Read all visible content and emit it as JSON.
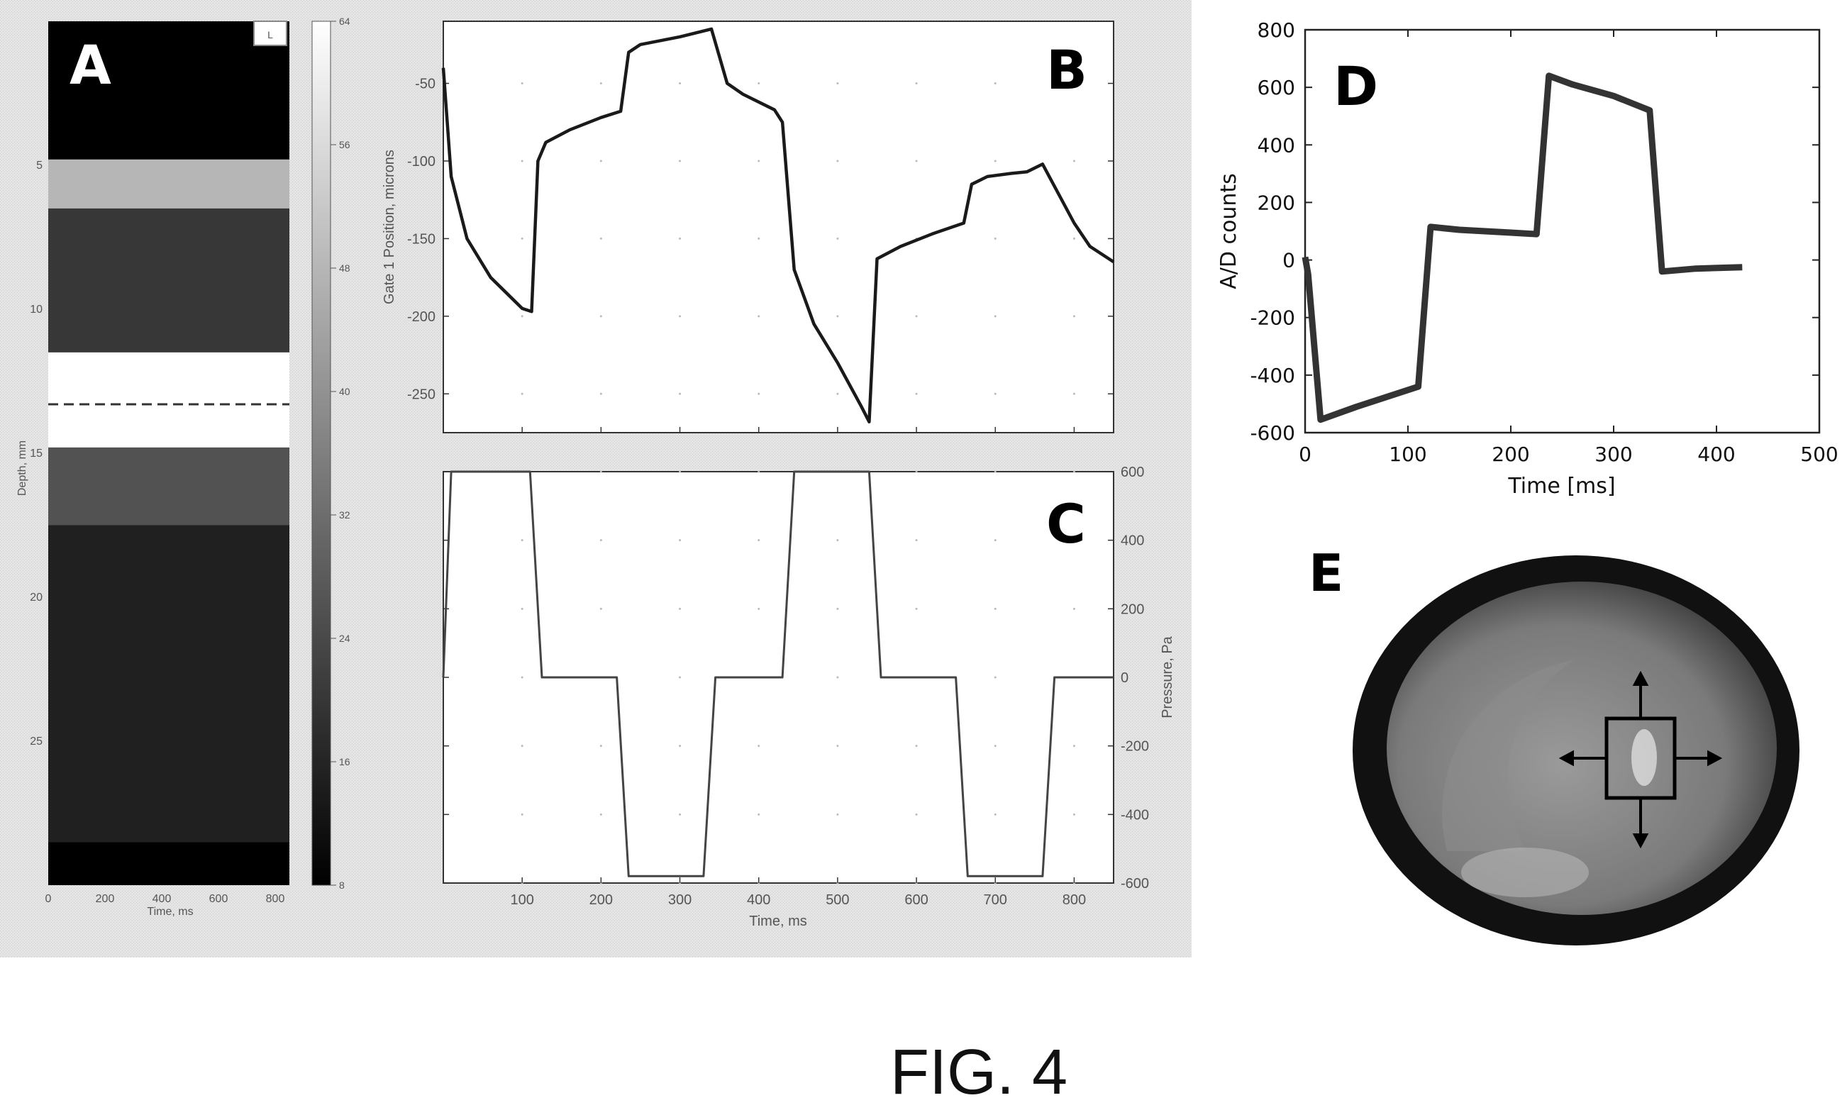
{
  "figure_label": "FIG. 4",
  "colors": {
    "trace": "#1a1a1a",
    "panel_bg": "#e6e6e6",
    "axis": "#222222"
  },
  "chart_data": [
    {
      "panel": "A",
      "type": "heatmap",
      "xlabel": "Time, ms",
      "ylabel": "Depth, mm",
      "xticks": [
        0,
        200,
        400,
        600,
        800
      ],
      "yticks": [
        5,
        10,
        15,
        20,
        25
      ],
      "xlim": [
        0,
        850
      ],
      "ylim": [
        0,
        30
      ],
      "colorbar_ticks": [
        8,
        16,
        24,
        32,
        40,
        48,
        56,
        64
      ],
      "colorbar_range": [
        8,
        64
      ],
      "dashed_line_depth": 13.3,
      "bands": [
        {
          "from": 0,
          "to": 4.8,
          "value": 8
        },
        {
          "from": 4.8,
          "to": 6.5,
          "value": 48
        },
        {
          "from": 6.5,
          "to": 11.5,
          "value": 20
        },
        {
          "from": 11.5,
          "to": 14.8,
          "value": 64
        },
        {
          "from": 14.8,
          "to": 17.5,
          "value": 26
        },
        {
          "from": 17.5,
          "to": 28.5,
          "value": 15
        },
        {
          "from": 28.5,
          "to": 30,
          "value": 8
        }
      ],
      "legend_glyph": "L"
    },
    {
      "panel": "B",
      "type": "line",
      "ylabel": "Gate 1 Position, microns",
      "xlim": [
        0,
        850
      ],
      "ylim": [
        -275,
        -10
      ],
      "yticks": [
        -50,
        -100,
        -150,
        -200,
        -250
      ],
      "x": [
        0,
        10,
        30,
        60,
        100,
        112,
        120,
        130,
        160,
        200,
        225,
        235,
        250,
        300,
        340,
        360,
        380,
        420,
        430,
        445,
        470,
        500,
        530,
        540,
        550,
        580,
        620,
        660,
        670,
        690,
        720,
        740,
        760,
        800,
        820,
        850
      ],
      "y": [
        -40,
        -110,
        -150,
        -175,
        -195,
        -197,
        -100,
        -88,
        -80,
        -72,
        -68,
        -30,
        -25,
        -20,
        -15,
        -50,
        -57,
        -67,
        -75,
        -170,
        -205,
        -230,
        -258,
        -268,
        -163,
        -155,
        -147,
        -140,
        -115,
        -110,
        -108,
        -107,
        -102,
        -140,
        -155,
        -165
      ]
    },
    {
      "panel": "C",
      "type": "line",
      "xlabel": "Time, ms",
      "ylabel": "Pressure, Pa",
      "xlim": [
        0,
        850
      ],
      "ylim": [
        -600,
        600
      ],
      "xticks": [
        100,
        200,
        300,
        400,
        500,
        600,
        700,
        800
      ],
      "yticks": [
        600,
        400,
        200,
        0,
        -200,
        -400,
        -600
      ],
      "x": [
        0,
        10,
        110,
        125,
        220,
        235,
        330,
        345,
        430,
        445,
        540,
        555,
        650,
        665,
        760,
        775,
        850
      ],
      "y": [
        0,
        600,
        600,
        0,
        0,
        -580,
        -580,
        0,
        0,
        600,
        600,
        0,
        0,
        -580,
        -580,
        0,
        0
      ]
    },
    {
      "panel": "D",
      "type": "line",
      "xlabel": "Time [ms]",
      "ylabel": "A/D counts",
      "xlim": [
        0,
        500
      ],
      "ylim": [
        -600,
        800
      ],
      "xticks": [
        0,
        100,
        200,
        300,
        400,
        500
      ],
      "yticks": [
        800,
        600,
        400,
        200,
        0,
        -200,
        -400,
        -600
      ],
      "x": [
        0,
        3,
        15,
        50,
        110,
        122,
        150,
        200,
        225,
        237,
        260,
        300,
        335,
        347,
        380,
        425
      ],
      "y": [
        10,
        -50,
        -555,
        -510,
        -440,
        115,
        105,
        95,
        90,
        640,
        610,
        570,
        520,
        -40,
        -30,
        -25
      ]
    }
  ]
}
